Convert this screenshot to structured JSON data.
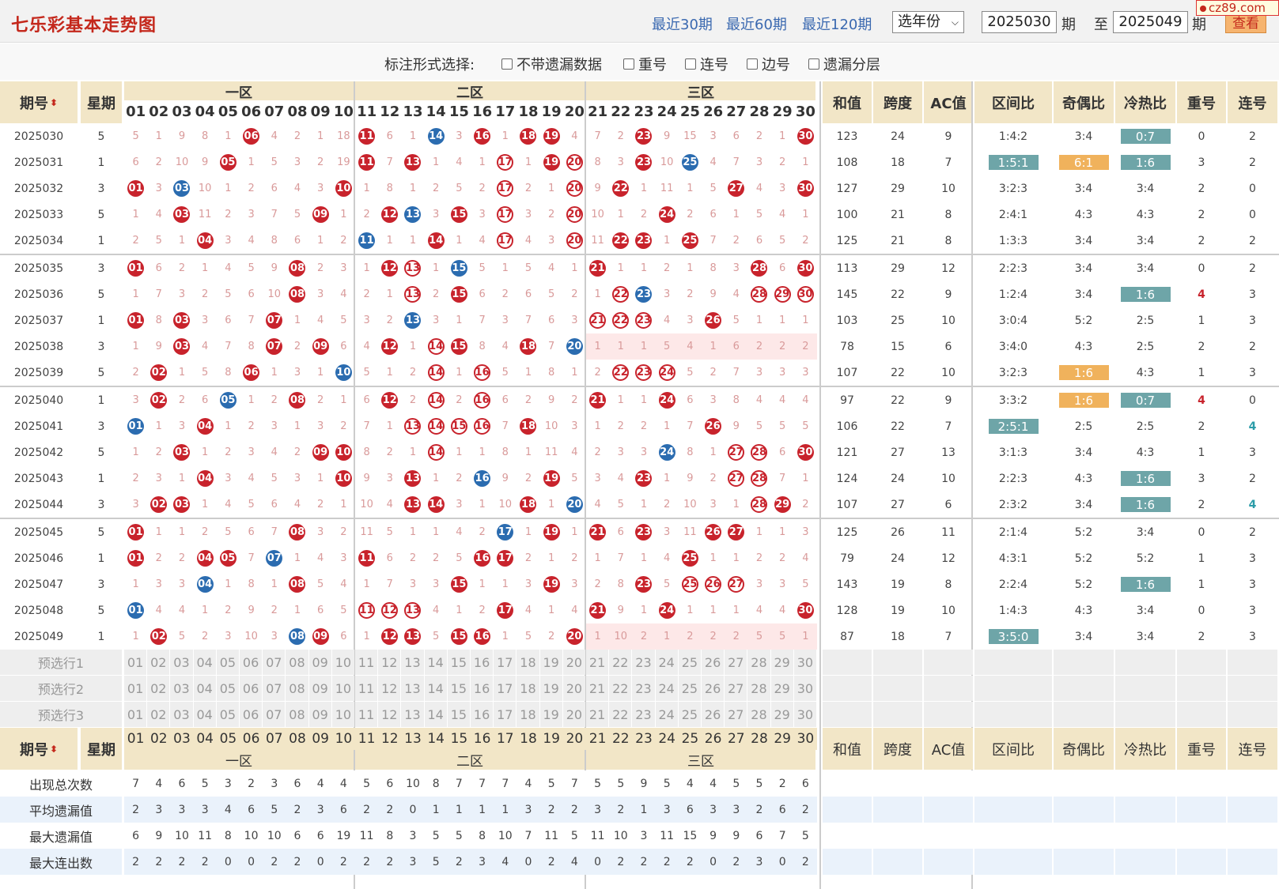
{
  "title": "七乐彩基本走势图",
  "period_links": [
    "最近30期",
    "最近60期",
    "最近120期"
  ],
  "year_select": "选年份",
  "period_from": "2025030",
  "period_to": "2025049",
  "label_qi": "期",
  "label_zhi": "至",
  "view_button": "查看",
  "watermark": "cz89.com",
  "mark_label": "标注形式选择:",
  "mark_options": [
    "不带遗漏数据",
    "重号",
    "连号",
    "边号",
    "遗漏分层"
  ],
  "headers": {
    "period": "期号",
    "weekday": "星期",
    "zone1": "一区",
    "zone2": "二区",
    "zone3": "三区",
    "sum": "和值",
    "span": "跨度",
    "ac": "AC值",
    "zone_ratio": "区间比",
    "odd_even": "奇偶比",
    "hot_cold": "冷热比",
    "repeat": "重号",
    "consec": "连号"
  },
  "numbers": [
    "01",
    "02",
    "03",
    "04",
    "05",
    "06",
    "07",
    "08",
    "09",
    "10",
    "11",
    "12",
    "13",
    "14",
    "15",
    "16",
    "17",
    "18",
    "19",
    "20",
    "21",
    "22",
    "23",
    "24",
    "25",
    "26",
    "27",
    "28",
    "29",
    "30"
  ],
  "rows": [
    {
      "period": "2025030",
      "wd": "5",
      "cells": [
        "5",
        "1",
        "9",
        "8",
        "1",
        "#06",
        "4",
        "2",
        "1",
        "18",
        "#11",
        "6",
        "1",
        "B14",
        "3",
        "#16",
        "1",
        "#18",
        "#19",
        "4",
        "7",
        "2",
        "#23",
        "9",
        "15",
        "3",
        "6",
        "2",
        "1",
        "#30"
      ],
      "sum": "123",
      "span": "24",
      "ac": "9",
      "zr": "1:4:2",
      "oe": "3:4",
      "hc": "T0:7",
      "rep": "0",
      "con": "2"
    },
    {
      "period": "2025031",
      "wd": "1",
      "cells": [
        "6",
        "2",
        "10",
        "9",
        "#05",
        "1",
        "5",
        "3",
        "2",
        "19",
        "#11",
        "7",
        "#13",
        "1",
        "4",
        "1",
        "O17",
        "1",
        "#19",
        "O20",
        "8",
        "3",
        "#23",
        "10",
        "B25",
        "4",
        "7",
        "3",
        "2",
        "1"
      ],
      "sum": "108",
      "span": "18",
      "ac": "7",
      "zr": "T1:5:1",
      "oe": "O6:1",
      "hc": "T1:6",
      "rep": "3",
      "con": "2"
    },
    {
      "period": "2025032",
      "wd": "3",
      "cells": [
        "#01",
        "3",
        "B03",
        "10",
        "1",
        "2",
        "6",
        "4",
        "3",
        "#10",
        "1",
        "8",
        "1",
        "2",
        "5",
        "2",
        "O17",
        "2",
        "1",
        "O20",
        "9",
        "#22",
        "1",
        "11",
        "1",
        "5",
        "#27",
        "4",
        "3",
        "#30"
      ],
      "sum": "127",
      "span": "29",
      "ac": "10",
      "zr": "3:2:3",
      "oe": "3:4",
      "hc": "3:4",
      "rep": "2",
      "con": "0"
    },
    {
      "period": "2025033",
      "wd": "5",
      "cells": [
        "1",
        "4",
        "#03",
        "11",
        "2",
        "3",
        "7",
        "5",
        "#09",
        "1",
        "2",
        "#12",
        "B13",
        "3",
        "#15",
        "3",
        "O17",
        "3",
        "2",
        "O20",
        "10",
        "1",
        "2",
        "#24",
        "2",
        "6",
        "1",
        "5",
        "4",
        "1"
      ],
      "sum": "100",
      "span": "21",
      "ac": "8",
      "zr": "2:4:1",
      "oe": "4:3",
      "hc": "4:3",
      "rep": "2",
      "con": "0"
    },
    {
      "period": "2025034",
      "wd": "1",
      "cells": [
        "2",
        "5",
        "1",
        "#04",
        "3",
        "4",
        "8",
        "6",
        "1",
        "2",
        "B11",
        "1",
        "1",
        "#14",
        "1",
        "4",
        "O17",
        "4",
        "3",
        "O20",
        "11",
        "#22",
        "#23",
        "1",
        "#25",
        "7",
        "2",
        "6",
        "5",
        "2"
      ],
      "sum": "125",
      "span": "21",
      "ac": "8",
      "zr": "1:3:3",
      "oe": "3:4",
      "hc": "3:4",
      "rep": "2",
      "con": "2"
    },
    {
      "period": "2025035",
      "wd": "3",
      "cells": [
        "#01",
        "6",
        "2",
        "1",
        "4",
        "5",
        "9",
        "#08",
        "2",
        "3",
        "1",
        "#12",
        "O13",
        "1",
        "B15",
        "5",
        "1",
        "5",
        "4",
        "1",
        "#21",
        "1",
        "1",
        "2",
        "1",
        "8",
        "3",
        "#28",
        "6",
        "#30"
      ],
      "sum": "113",
      "span": "29",
      "ac": "12",
      "zr": "2:2:3",
      "oe": "3:4",
      "hc": "3:4",
      "rep": "0",
      "con": "2"
    },
    {
      "period": "2025036",
      "wd": "5",
      "cells": [
        "1",
        "7",
        "3",
        "2",
        "5",
        "6",
        "10",
        "#08",
        "3",
        "4",
        "2",
        "1",
        "O13",
        "2",
        "#15",
        "6",
        "2",
        "6",
        "5",
        "2",
        "1",
        "O22",
        "B23",
        "3",
        "2",
        "9",
        "4",
        "O28",
        "O29",
        "O30"
      ],
      "sum": "145",
      "span": "22",
      "ac": "9",
      "zr": "1:2:4",
      "oe": "3:4",
      "hc": "T1:6",
      "rep": "R4",
      "con": "3"
    },
    {
      "period": "2025037",
      "wd": "1",
      "cells": [
        "#01",
        "8",
        "#03",
        "3",
        "6",
        "7",
        "#07",
        "1",
        "4",
        "5",
        "3",
        "2",
        "B13",
        "3",
        "1",
        "7",
        "3",
        "7",
        "6",
        "3",
        "O21",
        "O22",
        "O23",
        "4",
        "3",
        "#26",
        "5",
        "1",
        "1",
        "1"
      ],
      "sum": "103",
      "span": "25",
      "ac": "10",
      "zr": "3:0:4",
      "oe": "5:2",
      "hc": "2:5",
      "rep": "1",
      "con": "3"
    },
    {
      "period": "2025038",
      "wd": "3",
      "cells": [
        "1",
        "9",
        "#03",
        "4",
        "7",
        "8",
        "#07",
        "2",
        "#09",
        "6",
        "4",
        "#12",
        "1",
        "O14",
        "#15",
        "8",
        "4",
        "#18",
        "7",
        "B20",
        "1",
        "1",
        "1",
        "5",
        "4",
        "1",
        "6",
        "2",
        "2",
        "2"
      ],
      "sum": "78",
      "span": "15",
      "ac": "6",
      "zr": "3:4:0",
      "oe": "4:3",
      "hc": "2:5",
      "rep": "2",
      "con": "2",
      "pinkz3": true
    },
    {
      "period": "2025039",
      "wd": "5",
      "cells": [
        "2",
        "#02",
        "1",
        "5",
        "8",
        "#06",
        "1",
        "3",
        "1",
        "B10",
        "5",
        "1",
        "2",
        "O14",
        "1",
        "O16",
        "5",
        "1",
        "8",
        "1",
        "2",
        "O22",
        "O23",
        "O24",
        "5",
        "2",
        "7",
        "3",
        "3",
        "3"
      ],
      "sum": "107",
      "span": "22",
      "ac": "10",
      "zr": "3:2:3",
      "oe": "O1:6",
      "hc": "4:3",
      "rep": "1",
      "con": "3"
    },
    {
      "period": "2025040",
      "wd": "1",
      "cells": [
        "3",
        "#02",
        "2",
        "6",
        "B05",
        "1",
        "2",
        "#08",
        "2",
        "1",
        "6",
        "#12",
        "2",
        "O14",
        "2",
        "O16",
        "6",
        "2",
        "9",
        "2",
        "#21",
        "1",
        "1",
        "#24",
        "6",
        "3",
        "8",
        "4",
        "4",
        "4"
      ],
      "sum": "97",
      "span": "22",
      "ac": "9",
      "zr": "3:3:2",
      "oe": "O1:6",
      "hc": "T0:7",
      "rep": "R4",
      "con": "0"
    },
    {
      "period": "2025041",
      "wd": "3",
      "cells": [
        "B01",
        "1",
        "3",
        "#04",
        "1",
        "2",
        "3",
        "1",
        "3",
        "2",
        "7",
        "1",
        "O13",
        "O14",
        "O15",
        "O16",
        "7",
        "#18",
        "10",
        "3",
        "1",
        "2",
        "2",
        "1",
        "7",
        "#26",
        "9",
        "5",
        "5",
        "5"
      ],
      "sum": "106",
      "span": "22",
      "ac": "7",
      "zr": "T2:5:1",
      "oe": "2:5",
      "hc": "2:5",
      "rep": "2",
      "con": "C4"
    },
    {
      "period": "2025042",
      "wd": "5",
      "cells": [
        "1",
        "2",
        "#03",
        "1",
        "2",
        "3",
        "4",
        "2",
        "#09",
        "#10",
        "8",
        "2",
        "1",
        "O14",
        "1",
        "1",
        "8",
        "1",
        "11",
        "4",
        "2",
        "3",
        "3",
        "B24",
        "8",
        "1",
        "O27",
        "O28",
        "6",
        "#30"
      ],
      "sum": "121",
      "span": "27",
      "ac": "13",
      "zr": "3:1:3",
      "oe": "3:4",
      "hc": "4:3",
      "rep": "1",
      "con": "3"
    },
    {
      "period": "2025043",
      "wd": "1",
      "cells": [
        "2",
        "3",
        "1",
        "#04",
        "3",
        "4",
        "5",
        "3",
        "1",
        "#10",
        "9",
        "3",
        "#13",
        "1",
        "2",
        "B16",
        "9",
        "2",
        "#19",
        "5",
        "3",
        "4",
        "#23",
        "1",
        "9",
        "2",
        "O27",
        "O28",
        "7",
        "1"
      ],
      "sum": "124",
      "span": "24",
      "ac": "10",
      "zr": "2:2:3",
      "oe": "4:3",
      "hc": "T1:6",
      "rep": "3",
      "con": "2"
    },
    {
      "period": "2025044",
      "wd": "3",
      "cells": [
        "3",
        "#02",
        "#03",
        "1",
        "4",
        "5",
        "6",
        "4",
        "2",
        "1",
        "10",
        "4",
        "#13",
        "#14",
        "3",
        "1",
        "10",
        "#18",
        "1",
        "B20",
        "4",
        "5",
        "1",
        "2",
        "10",
        "3",
        "1",
        "O28",
        "#29",
        "2"
      ],
      "sum": "107",
      "span": "27",
      "ac": "6",
      "zr": "2:3:2",
      "oe": "3:4",
      "hc": "T1:6",
      "rep": "2",
      "con": "C4"
    },
    {
      "period": "2025045",
      "wd": "5",
      "cells": [
        "#01",
        "1",
        "1",
        "2",
        "5",
        "6",
        "7",
        "#08",
        "3",
        "2",
        "11",
        "5",
        "1",
        "1",
        "4",
        "2",
        "B17",
        "1",
        "#19",
        "1",
        "#21",
        "6",
        "#23",
        "3",
        "11",
        "#26",
        "#27",
        "1",
        "1",
        "3"
      ],
      "sum": "125",
      "span": "26",
      "ac": "11",
      "zr": "2:1:4",
      "oe": "5:2",
      "hc": "3:4",
      "rep": "0",
      "con": "2"
    },
    {
      "period": "2025046",
      "wd": "1",
      "cells": [
        "#01",
        "2",
        "2",
        "#04",
        "#05",
        "7",
        "B07",
        "1",
        "4",
        "3",
        "#11",
        "6",
        "2",
        "2",
        "5",
        "#16",
        "#17",
        "2",
        "1",
        "2",
        "1",
        "7",
        "1",
        "4",
        "#25",
        "1",
        "1",
        "2",
        "2",
        "4"
      ],
      "sum": "79",
      "span": "24",
      "ac": "12",
      "zr": "4:3:1",
      "oe": "5:2",
      "hc": "5:2",
      "rep": "1",
      "con": "3"
    },
    {
      "period": "2025047",
      "wd": "3",
      "cells": [
        "1",
        "3",
        "3",
        "B04",
        "1",
        "8",
        "1",
        "#08",
        "5",
        "4",
        "1",
        "7",
        "3",
        "3",
        "#15",
        "1",
        "1",
        "3",
        "#19",
        "3",
        "2",
        "8",
        "#23",
        "5",
        "O25",
        "O26",
        "O27",
        "3",
        "3",
        "5"
      ],
      "sum": "143",
      "span": "19",
      "ac": "8",
      "zr": "2:2:4",
      "oe": "5:2",
      "hc": "T1:6",
      "rep": "1",
      "con": "3"
    },
    {
      "period": "2025048",
      "wd": "5",
      "cells": [
        "B01",
        "4",
        "4",
        "1",
        "2",
        "9",
        "2",
        "1",
        "6",
        "5",
        "O11",
        "O12",
        "O13",
        "4",
        "1",
        "2",
        "#17",
        "4",
        "1",
        "4",
        "#21",
        "9",
        "1",
        "#24",
        "1",
        "1",
        "1",
        "4",
        "4",
        "#30"
      ],
      "sum": "128",
      "span": "19",
      "ac": "10",
      "zr": "1:4:3",
      "oe": "4:3",
      "hc": "3:4",
      "rep": "0",
      "con": "3"
    },
    {
      "period": "2025049",
      "wd": "1",
      "cells": [
        "1",
        "#02",
        "5",
        "2",
        "3",
        "10",
        "3",
        "B08",
        "#09",
        "6",
        "1",
        "#12",
        "#13",
        "5",
        "#15",
        "#16",
        "1",
        "5",
        "2",
        "#20",
        "1",
        "10",
        "2",
        "1",
        "2",
        "2",
        "2",
        "5",
        "5",
        "1"
      ],
      "sum": "87",
      "span": "18",
      "ac": "7",
      "zr": "T3:5:0",
      "oe": "3:4",
      "hc": "3:4",
      "rep": "2",
      "con": "3",
      "pinkz3": true
    }
  ],
  "preselect_rows": [
    "预选行1",
    "预选行2",
    "预选行3"
  ],
  "stats": [
    {
      "label": "出现总次数",
      "values": [
        "7",
        "4",
        "6",
        "5",
        "3",
        "2",
        "3",
        "6",
        "4",
        "4",
        "5",
        "6",
        "10",
        "8",
        "7",
        "7",
        "7",
        "4",
        "5",
        "7",
        "5",
        "5",
        "9",
        "5",
        "4",
        "4",
        "5",
        "5",
        "2",
        "6"
      ]
    },
    {
      "label": "平均遗漏值",
      "values": [
        "2",
        "3",
        "3",
        "3",
        "4",
        "6",
        "5",
        "2",
        "3",
        "6",
        "2",
        "2",
        "0",
        "1",
        "1",
        "1",
        "1",
        "3",
        "2",
        "2",
        "3",
        "2",
        "1",
        "3",
        "6",
        "3",
        "3",
        "2",
        "6",
        "2"
      ]
    },
    {
      "label": "最大遗漏值",
      "values": [
        "6",
        "9",
        "10",
        "11",
        "8",
        "10",
        "10",
        "6",
        "6",
        "19",
        "11",
        "8",
        "3",
        "5",
        "5",
        "8",
        "10",
        "7",
        "11",
        "5",
        "11",
        "10",
        "3",
        "11",
        "15",
        "9",
        "9",
        "6",
        "7",
        "5"
      ]
    },
    {
      "label": "最大连出数",
      "values": [
        "2",
        "2",
        "2",
        "2",
        "0",
        "0",
        "2",
        "2",
        "0",
        "2",
        "2",
        "2",
        "3",
        "5",
        "2",
        "3",
        "4",
        "0",
        "2",
        "4",
        "0",
        "2",
        "2",
        "2",
        "2",
        "0",
        "2",
        "3",
        "0",
        "2"
      ]
    }
  ],
  "colors": {
    "red": "#c8232c",
    "blue": "#2b6cb0",
    "header": "#f2e6c7",
    "teal": "#6ea5a8",
    "orange": "#f0b25c"
  }
}
